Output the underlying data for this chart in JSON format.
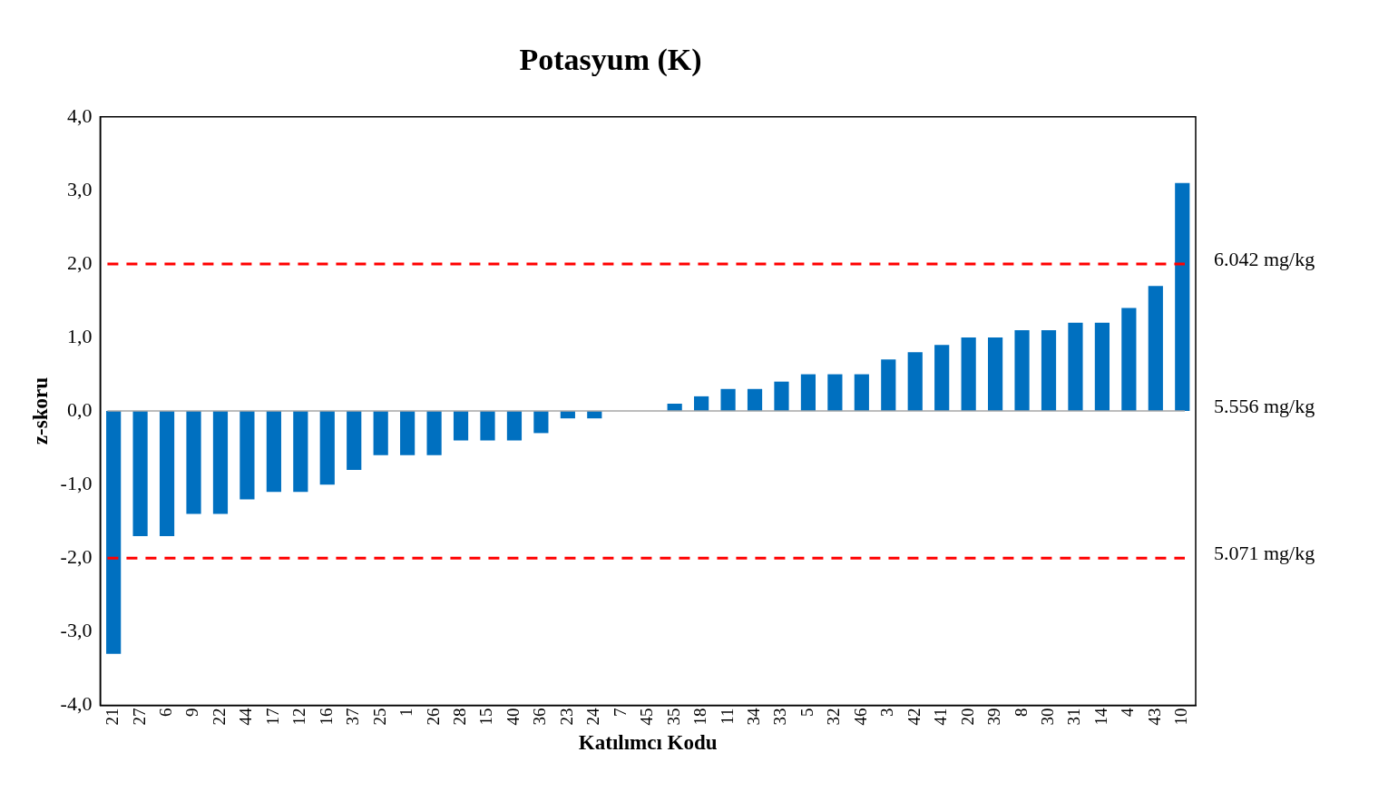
{
  "chart_data": {
    "type": "bar",
    "title": "Potasyum (K)",
    "xlabel": "Katılımcı Kodu",
    "ylabel": "z-skoru",
    "categories": [
      "21",
      "27",
      "6",
      "9",
      "22",
      "44",
      "17",
      "12",
      "16",
      "37",
      "25",
      "1",
      "26",
      "28",
      "15",
      "40",
      "36",
      "23",
      "24",
      "7",
      "45",
      "35",
      "18",
      "11",
      "34",
      "33",
      "5",
      "32",
      "46",
      "3",
      "42",
      "41",
      "20",
      "39",
      "8",
      "30",
      "31",
      "14",
      "4",
      "43",
      "10"
    ],
    "values": [
      -3.3,
      -1.7,
      -1.7,
      -1.4,
      -1.4,
      -1.2,
      -1.1,
      -1.1,
      -1.0,
      -0.8,
      -0.6,
      -0.6,
      -0.6,
      -0.4,
      -0.4,
      -0.4,
      -0.3,
      -0.1,
      -0.1,
      0,
      0,
      0.1,
      0.2,
      0.3,
      0.3,
      0.4,
      0.5,
      0.5,
      0.5,
      0.7,
      0.8,
      0.9,
      1.0,
      1.0,
      1.1,
      1.1,
      1.2,
      1.2,
      1.4,
      1.7,
      3.1
    ],
    "color": "#0070c0",
    "ylim": [
      -4,
      4
    ],
    "yticks": [
      {
        "value": -4,
        "label": "-4,0"
      },
      {
        "value": -3,
        "label": "-3,0"
      },
      {
        "value": -2,
        "label": "-2,0"
      },
      {
        "value": -1,
        "label": "-1,0"
      },
      {
        "value": 0,
        "label": "0,0"
      },
      {
        "value": 1,
        "label": "1,0"
      },
      {
        "value": 2,
        "label": "2,0"
      },
      {
        "value": 3,
        "label": "3,0"
      },
      {
        "value": 4,
        "label": "4,0"
      }
    ],
    "grid": false,
    "legend": false,
    "ref_lines": [
      {
        "axis": "y",
        "value": 2,
        "label": "6.042 mg/kg",
        "color": "#ff0000",
        "line_style": "dashed"
      },
      {
        "axis": "y",
        "value": 0,
        "label": "5.556 mg/kg",
        "color": "#a6a6a6",
        "line_style": "solid"
      },
      {
        "axis": "y",
        "value": -2,
        "label": "5.071 mg/kg",
        "color": "#ff0000",
        "line_style": "dashed"
      }
    ]
  }
}
